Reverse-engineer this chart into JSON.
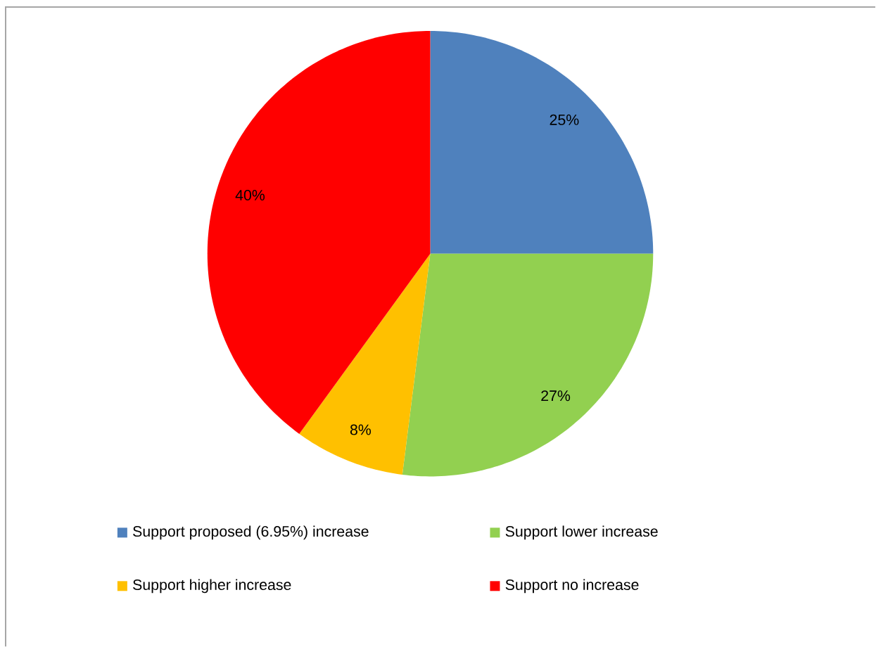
{
  "chart_data": {
    "type": "pie",
    "categories": [
      "Support proposed (6.95%) increase",
      "Support lower increase",
      "Support higher increase",
      "Support no increase"
    ],
    "values": [
      25,
      27,
      8,
      40
    ],
    "value_labels": [
      "25%",
      "27%",
      "8%",
      "40%"
    ],
    "colors": [
      "#4f81bd",
      "#92d050",
      "#ffc000",
      "#ff0000"
    ],
    "legend": "bottom"
  }
}
